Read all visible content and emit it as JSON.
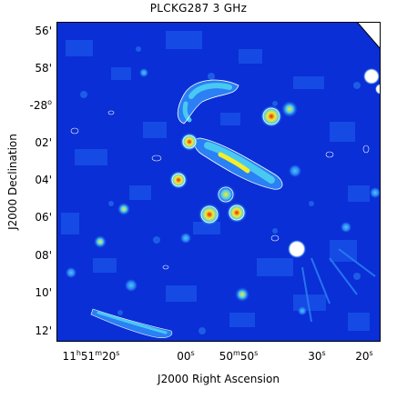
{
  "title": "PLCKG287 3 GHz",
  "x_axis": {
    "title": "J2000 Right Ascension",
    "ticks": [
      {
        "pre": "11",
        "h": "h",
        "m1": "51",
        "m": "m",
        "s1": "20",
        "s": "s"
      },
      {
        "pre": "00",
        "h": "",
        "m1": "",
        "m": "",
        "s1": "",
        "s": "s"
      },
      {
        "pre": "50",
        "h": "m",
        "m1": "50",
        "m": "",
        "s1": "",
        "s": "s"
      },
      {
        "pre": "30",
        "h": "",
        "m1": "",
        "m": "",
        "s1": "",
        "s": "s"
      },
      {
        "pre": "20",
        "h": "",
        "m1": "",
        "m": "",
        "s1": "",
        "s": "s"
      }
    ]
  },
  "y_axis": {
    "title": "J2000 Declination",
    "ticks": [
      {
        "label": "56'"
      },
      {
        "label": "58'"
      },
      {
        "label": "-28",
        "sup": "o"
      },
      {
        "label": "02'"
      },
      {
        "label": "04'"
      },
      {
        "label": "06'"
      },
      {
        "label": "08'"
      },
      {
        "label": "10'"
      },
      {
        "label": "12'"
      }
    ]
  },
  "colors": {
    "background": "#0a2fd6",
    "mid": "#1e64f0",
    "cyan": "#49c9f2",
    "yellow": "#f4ee2a",
    "red": "#e81d1d",
    "white": "#ffffff"
  }
}
